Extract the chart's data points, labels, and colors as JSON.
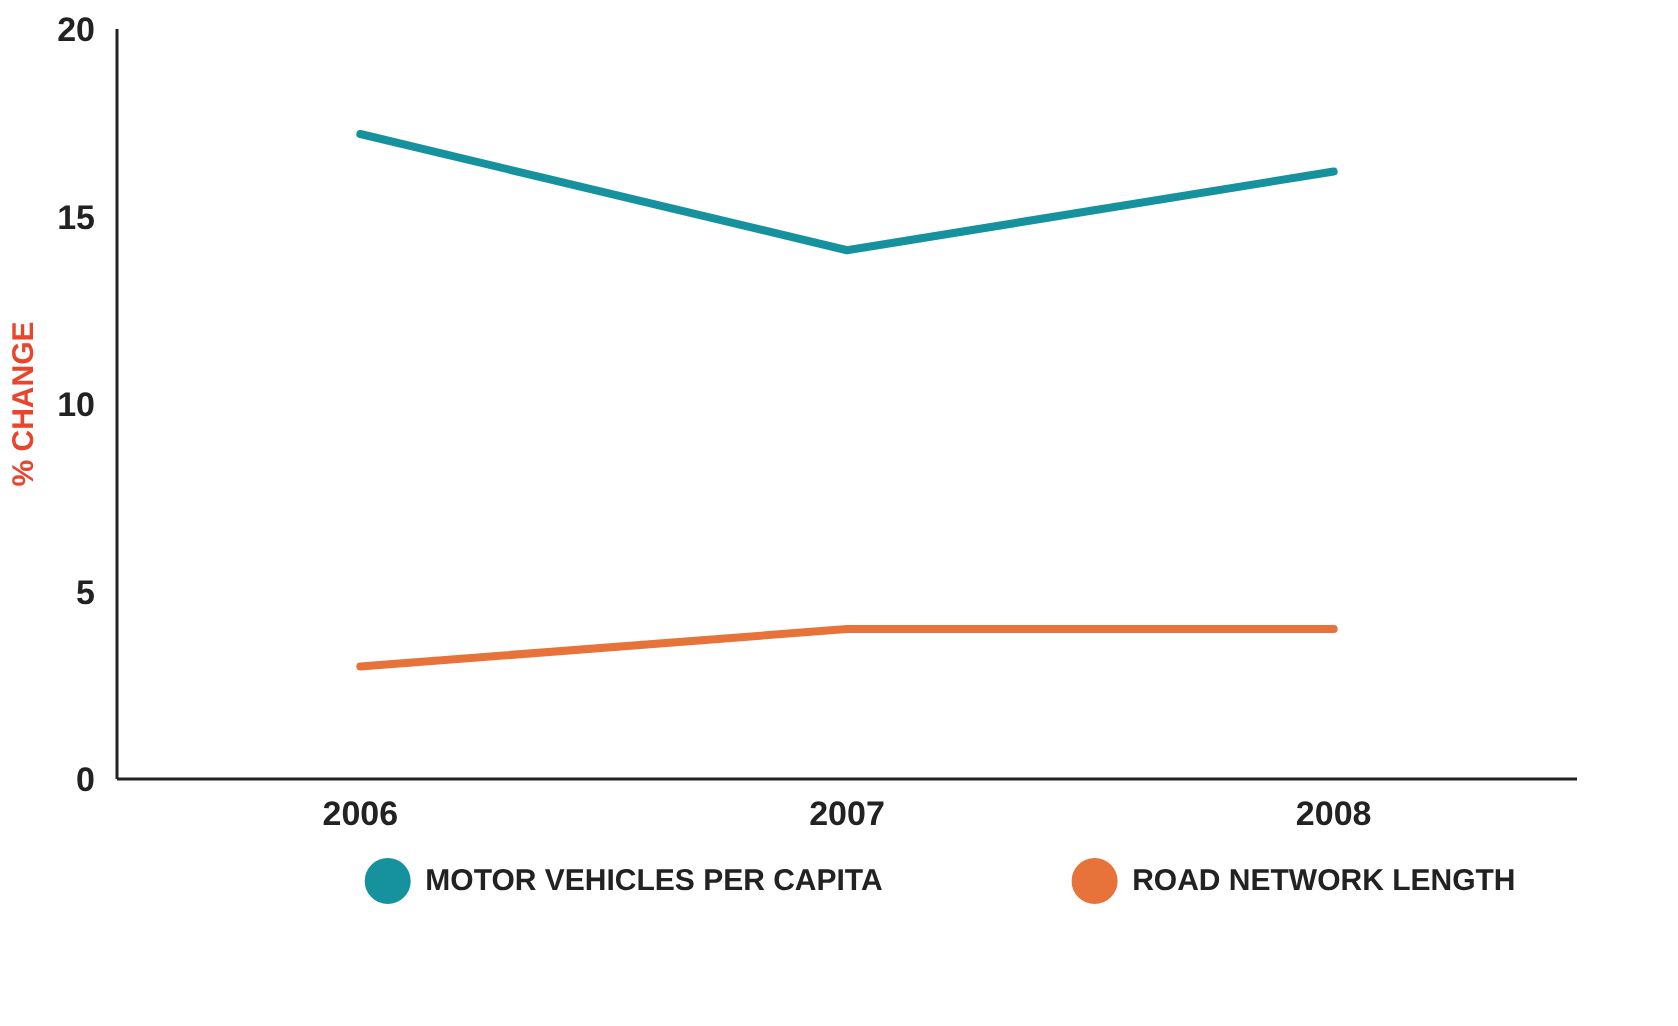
{
  "chart_data": {
    "type": "line",
    "ylabel": "% CHANGE",
    "categories": [
      "2006",
      "2007",
      "2008"
    ],
    "series": [
      {
        "name": "MOTOR VEHICLES PER CAPITA",
        "color": "#16929e",
        "values": [
          17.2,
          14.1,
          16.2
        ]
      },
      {
        "name": "ROAD NETWORK LENGTH",
        "color": "#e8733a",
        "values": [
          3.0,
          4.0,
          4.0
        ]
      }
    ],
    "ylim": [
      0,
      20
    ],
    "yticks": [
      0,
      5,
      10,
      15,
      20
    ],
    "grid": false,
    "legend": "bottom"
  }
}
